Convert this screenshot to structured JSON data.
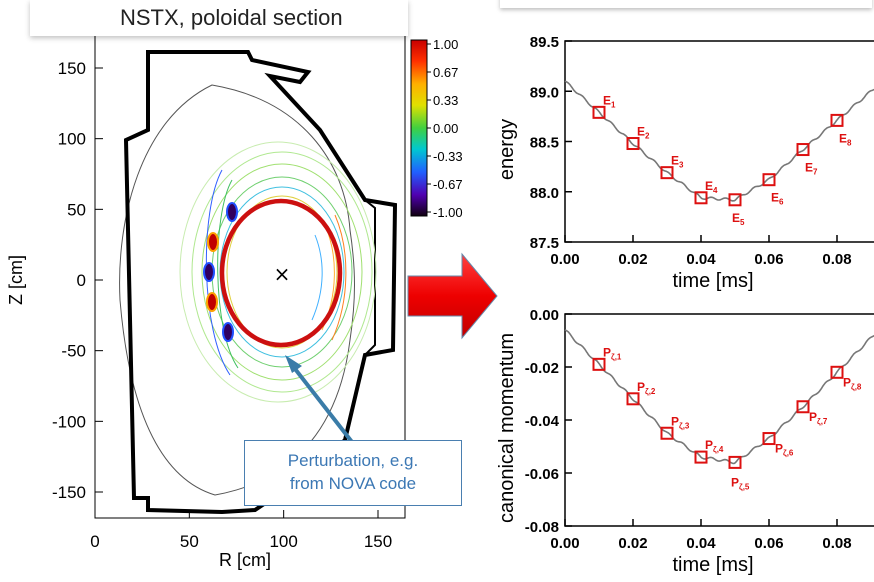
{
  "left_plot": {
    "title": "NSTX, poloidal section",
    "xlabel": "R [cm]",
    "ylabel": "Z [cm]",
    "xticks": [
      "0",
      "50",
      "100",
      "150"
    ],
    "xtick_values": [
      0,
      50,
      100,
      150
    ],
    "yticks": [
      "150",
      "100",
      "50",
      "0",
      "-50",
      "-100",
      "-150"
    ],
    "ytick_values": [
      150,
      100,
      50,
      0,
      -50,
      -100,
      -150
    ],
    "colorbar_ticks": [
      "1.00",
      "0.67",
      "0.33",
      "0.00",
      "-0.33",
      "-0.67",
      "-1.00"
    ],
    "marker": "×",
    "callout_line1": "Perturbation, e.g.",
    "callout_line2": "from NOVA code"
  },
  "chart_data": [
    {
      "type": "line",
      "xlabel": "time [ms]",
      "ylabel": "energy",
      "xlim": [
        0.0,
        0.09
      ],
      "ylim": [
        87.5,
        89.5
      ],
      "xticks": [
        "0.00",
        "0.02",
        "0.04",
        "0.06",
        "0.08"
      ],
      "yticks": [
        "89.5",
        "89.0",
        "88.5",
        "88.0",
        "87.5"
      ],
      "markers": [
        {
          "label": "E",
          "sub": "1",
          "x": 0.01,
          "y": 88.79
        },
        {
          "label": "E",
          "sub": "2",
          "x": 0.02,
          "y": 88.48
        },
        {
          "label": "E",
          "sub": "3",
          "x": 0.03,
          "y": 88.19
        },
        {
          "label": "E",
          "sub": "4",
          "x": 0.04,
          "y": 87.94
        },
        {
          "label": "E",
          "sub": "5",
          "x": 0.05,
          "y": 87.92
        },
        {
          "label": "E",
          "sub": "6",
          "x": 0.06,
          "y": 88.12
        },
        {
          "label": "E",
          "sub": "7",
          "x": 0.07,
          "y": 88.42
        },
        {
          "label": "E",
          "sub": "8",
          "x": 0.08,
          "y": 88.71
        }
      ]
    },
    {
      "type": "line",
      "xlabel": "time [ms]",
      "ylabel": "canonical momentum",
      "xlim": [
        0.0,
        0.09
      ],
      "ylim": [
        -0.08,
        0.0
      ],
      "xticks": [
        "0.00",
        "0.02",
        "0.04",
        "0.06",
        "0.08"
      ],
      "yticks": [
        "0.00",
        "-0.02",
        "-0.04",
        "-0.06",
        "-0.08"
      ],
      "markers": [
        {
          "label": "P",
          "sub": "ζ,1",
          "x": 0.01,
          "y": -0.019
        },
        {
          "label": "P",
          "sub": "ζ,2",
          "x": 0.02,
          "y": -0.032
        },
        {
          "label": "P",
          "sub": "ζ,3",
          "x": 0.03,
          "y": -0.045
        },
        {
          "label": "P",
          "sub": "ζ,4",
          "x": 0.04,
          "y": -0.054
        },
        {
          "label": "P",
          "sub": "ζ,5",
          "x": 0.05,
          "y": -0.056
        },
        {
          "label": "P",
          "sub": "ζ,6",
          "x": 0.06,
          "y": -0.047
        },
        {
          "label": "P",
          "sub": "ζ,7",
          "x": 0.07,
          "y": -0.035
        },
        {
          "label": "P",
          "sub": "ζ,8",
          "x": 0.08,
          "y": -0.022
        }
      ]
    }
  ]
}
